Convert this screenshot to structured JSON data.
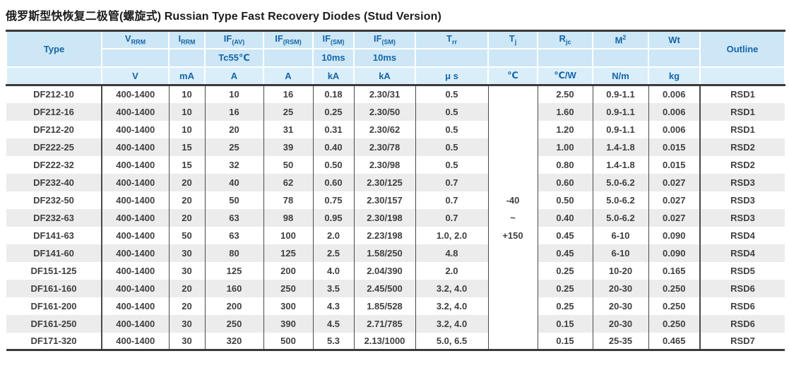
{
  "title": "俄罗斯型快恢复二极管(螺旋式) Russian Type Fast Recovery Diodes (Stud Version)",
  "colors": {
    "header_bg": "#cde7f6",
    "header_units_bg": "#daeefa",
    "header_text": "#1565a8",
    "data_text": "#3f3f3f",
    "row_stripe": "#ececec",
    "heavy_border": "#3a3a3a"
  },
  "table": {
    "header": {
      "type": "Type",
      "vrrm": {
        "base": "V",
        "sub": "RRM"
      },
      "irrm": {
        "base": "I",
        "sub": "RRM"
      },
      "ifav": {
        "base": "IF",
        "sub": "(AV)"
      },
      "ifrsm": {
        "base": "IF",
        "sub": "(RSM)"
      },
      "ifsm": {
        "base": "IF",
        "sub": "(SM)"
      },
      "ifsm10": {
        "base": "IF",
        "sub": "(SM)"
      },
      "trr": {
        "base": "T",
        "sub": "rr"
      },
      "tj": {
        "base": "T",
        "sub": "j"
      },
      "rjc": {
        "base": "R",
        "sub": "jc"
      },
      "m2": {
        "base": "M",
        "sup": "2"
      },
      "wt": "Wt",
      "outline": "Outline",
      "row2": {
        "ifav": "Tc55℃",
        "ifsm": "10ms",
        "ifsm10": "10ms"
      },
      "units": {
        "vrrm": "V",
        "irrm": "mA",
        "ifav": "A",
        "ifrsm": "A",
        "ifsm": "kA",
        "ifsm10": "kA",
        "trr": "μ s",
        "tj": "℃",
        "rjc": "℃/W",
        "m2": "N/m",
        "wt": "kg"
      }
    },
    "tj_range": [
      "-40",
      "~",
      "+150"
    ],
    "rows": [
      [
        "DF212-10",
        "400-1400",
        "10",
        "10",
        "16",
        "0.18",
        "2.30/31",
        "0.5",
        "2.50",
        "0.9-1.1",
        "0.006",
        "RSD1"
      ],
      [
        "DF212-16",
        "400-1400",
        "10",
        "16",
        "25",
        "0.25",
        "2.30/50",
        "0.5",
        "1.60",
        "0.9-1.1",
        "0.006",
        "RSD1"
      ],
      [
        "DF212-20",
        "400-1400",
        "10",
        "20",
        "31",
        "0.31",
        "2.30/62",
        "0.5",
        "1.20",
        "0.9-1.1",
        "0.006",
        "RSD1"
      ],
      [
        "DF222-25",
        "400-1400",
        "15",
        "25",
        "39",
        "0.40",
        "2.30/78",
        "0.5",
        "1.00",
        "1.4-1.8",
        "0.015",
        "RSD2"
      ],
      [
        "DF222-32",
        "400-1400",
        "15",
        "32",
        "50",
        "0.50",
        "2.30/98",
        "0.5",
        "0.80",
        "1.4-1.8",
        "0.015",
        "RSD2"
      ],
      [
        "DF232-40",
        "400-1400",
        "20",
        "40",
        "62",
        "0.60",
        "2.30/125",
        "0.7",
        "0.60",
        "5.0-6.2",
        "0.027",
        "RSD3"
      ],
      [
        "DF232-50",
        "400-1400",
        "20",
        "50",
        "78",
        "0.75",
        "2.30/157",
        "0.7",
        "0.50",
        "5.0-6.2",
        "0.027",
        "RSD3"
      ],
      [
        "DF232-63",
        "400-1400",
        "20",
        "63",
        "98",
        "0.95",
        "2.30/198",
        "0.7",
        "0.40",
        "5.0-6.2",
        "0.027",
        "RSD3"
      ],
      [
        "DF141-63",
        "400-1400",
        "50",
        "63",
        "100",
        "2.0",
        "2.23/198",
        "1.0, 2.0",
        "0.45",
        "6-10",
        "0.090",
        "RSD4"
      ],
      [
        "DF141-60",
        "400-1400",
        "30",
        "80",
        "125",
        "2.5",
        "1.58/250",
        "4.8",
        "0.45",
        "6-10",
        "0.090",
        "RSD4"
      ],
      [
        "DF151-125",
        "400-1400",
        "30",
        "125",
        "200",
        "4.0",
        "2.04/390",
        "2.0",
        "0.25",
        "10-20",
        "0.165",
        "RSD5"
      ],
      [
        "DF161-160",
        "400-1400",
        "20",
        "160",
        "250",
        "3.5",
        "2.45/500",
        "3.2, 4.0",
        "0.25",
        "20-30",
        "0.250",
        "RSD6"
      ],
      [
        "DF161-200",
        "400-1400",
        "20",
        "200",
        "300",
        "4.3",
        "1.85/528",
        "3.2, 4.0",
        "0.25",
        "20-30",
        "0.250",
        "RSD6"
      ],
      [
        "DF161-250",
        "400-1400",
        "30",
        "250",
        "390",
        "4.5",
        "2.71/785",
        "3.2, 4.0",
        "0.15",
        "20-30",
        "0.250",
        "RSD6"
      ],
      [
        "DF171-320",
        "400-1400",
        "30",
        "320",
        "500",
        "5.3",
        "2.13/1000",
        "5.0, 6.5",
        "0.15",
        "25-35",
        "0.465",
        "RSD7"
      ]
    ]
  }
}
